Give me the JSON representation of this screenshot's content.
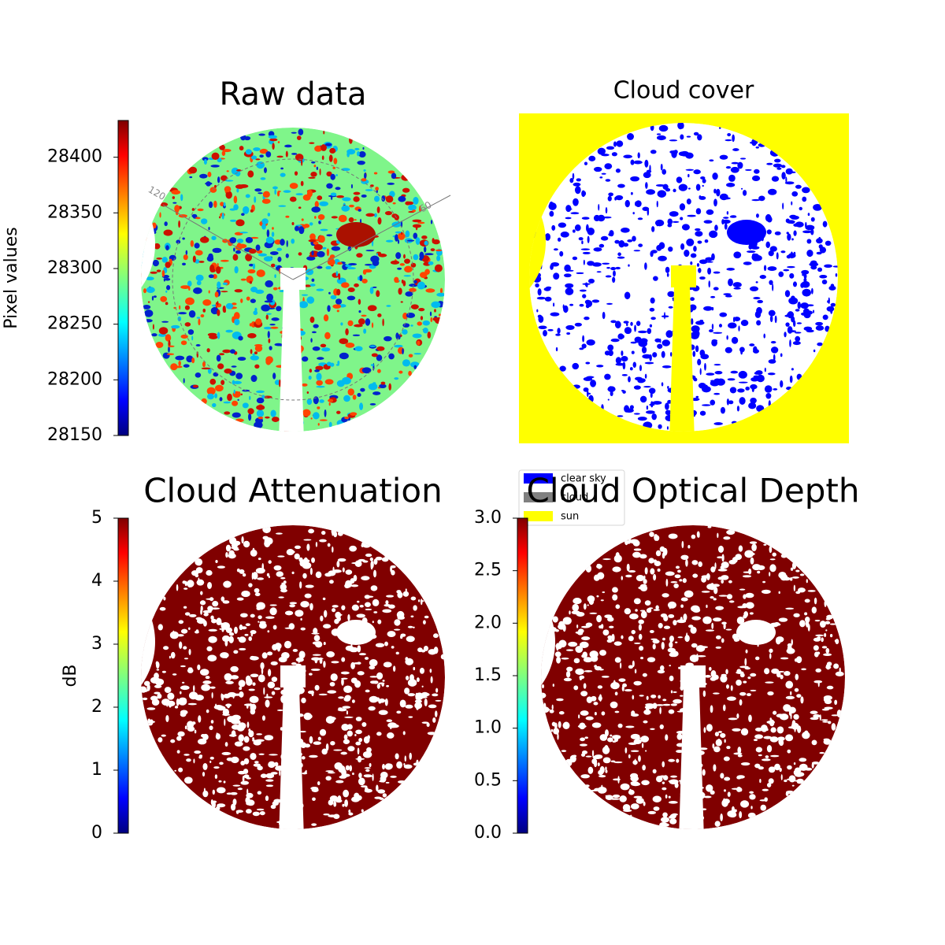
{
  "chart_data": [
    {
      "type": "image",
      "title": "Raw data",
      "ylabel": "Pixel values",
      "ylim": [
        28150,
        28433
      ],
      "yticks": [
        28150,
        28200,
        28250,
        28300,
        28350,
        28400
      ],
      "colormap": "jet",
      "annotations": [
        "120",
        "60"
      ]
    },
    {
      "type": "image",
      "title": "Cloud cover",
      "legend": [
        {
          "name": "clear sky",
          "color": "#0000ff"
        },
        {
          "name": "cloud",
          "color": "#808080"
        },
        {
          "name": "sun",
          "color": "#ffff00"
        }
      ]
    },
    {
      "type": "image",
      "title": "Cloud Attenuation",
      "ylabel": "dB",
      "ylim": [
        0,
        5
      ],
      "yticks": [
        0,
        1,
        2,
        3,
        4,
        5
      ],
      "colormap": "jet"
    },
    {
      "type": "image",
      "title": "Cloud Optical Depth",
      "ylim": [
        0,
        3
      ],
      "yticks": [
        {
          "value": 0,
          "label": "0.0"
        },
        0.5,
        {
          "value": 1,
          "label": "1.0"
        },
        1.5,
        {
          "value": 2,
          "label": "2.0"
        },
        2.5,
        {
          "value": 3,
          "label": "3.0"
        }
      ],
      "colormap": "jet"
    }
  ]
}
